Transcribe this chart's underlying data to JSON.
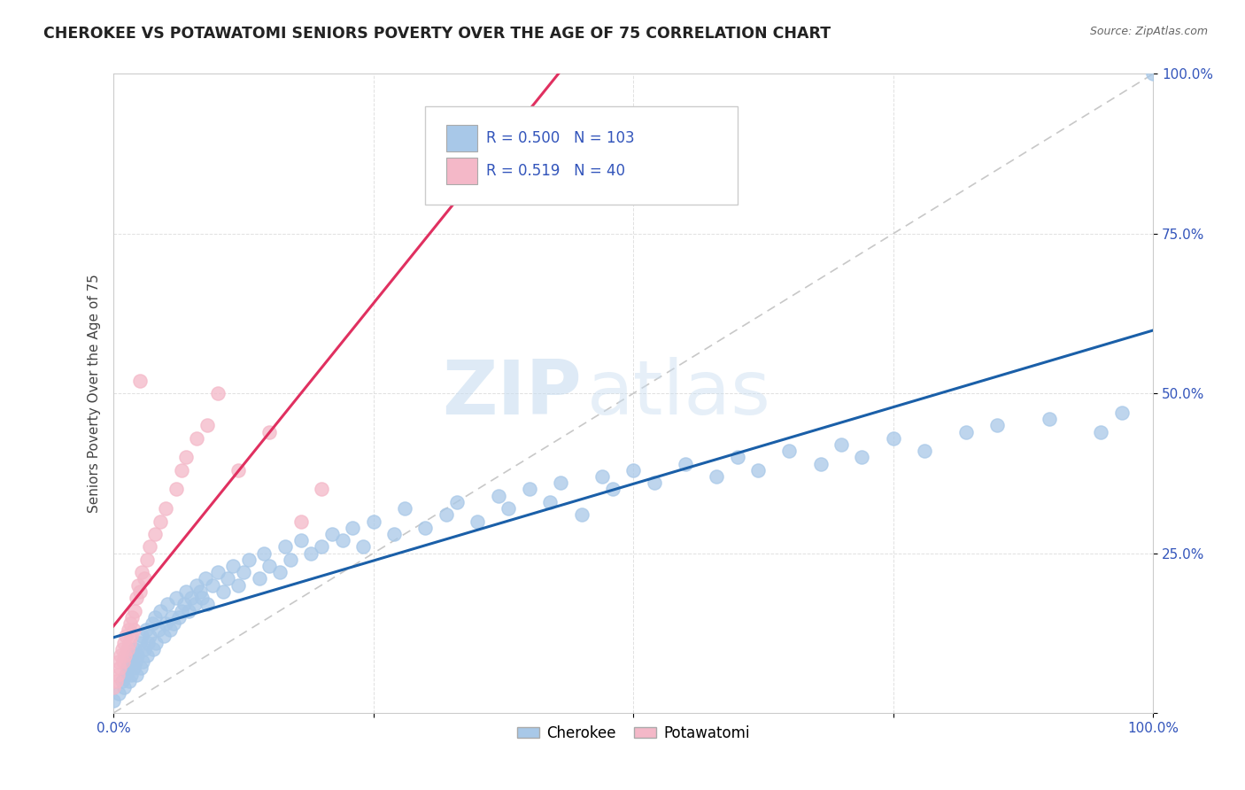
{
  "title": "CHEROKEE VS POTAWATOMI SENIORS POVERTY OVER THE AGE OF 75 CORRELATION CHART",
  "source": "Source: ZipAtlas.com",
  "ylabel": "Seniors Poverty Over the Age of 75",
  "cherokee_R": 0.5,
  "cherokee_N": 103,
  "potawatomi_R": 0.519,
  "potawatomi_N": 40,
  "cherokee_color": "#a8c8e8",
  "potawatomi_color": "#f4b8c8",
  "cherokee_line_color": "#1a5fa8",
  "potawatomi_line_color": "#e03060",
  "ref_line_color": "#c8c8c8",
  "background_color": "#ffffff",
  "legend_text_color": "#3355bb",
  "tick_color": "#3355bb",
  "xlim": [
    0.0,
    1.0
  ],
  "ylim": [
    0.0,
    1.0
  ],
  "cherokee_x": [
    0.0,
    0.005,
    0.008,
    0.01,
    0.012,
    0.013,
    0.015,
    0.016,
    0.017,
    0.018,
    0.019,
    0.02,
    0.021,
    0.022,
    0.023,
    0.025,
    0.026,
    0.027,
    0.028,
    0.03,
    0.031,
    0.032,
    0.033,
    0.035,
    0.037,
    0.038,
    0.04,
    0.041,
    0.043,
    0.045,
    0.048,
    0.05,
    0.052,
    0.054,
    0.056,
    0.058,
    0.06,
    0.063,
    0.065,
    0.068,
    0.07,
    0.072,
    0.075,
    0.078,
    0.08,
    0.083,
    0.085,
    0.088,
    0.09,
    0.095,
    0.1,
    0.105,
    0.11,
    0.115,
    0.12,
    0.125,
    0.13,
    0.14,
    0.145,
    0.15,
    0.16,
    0.165,
    0.17,
    0.18,
    0.19,
    0.2,
    0.21,
    0.22,
    0.23,
    0.24,
    0.25,
    0.27,
    0.28,
    0.3,
    0.32,
    0.33,
    0.35,
    0.37,
    0.38,
    0.4,
    0.42,
    0.43,
    0.45,
    0.47,
    0.48,
    0.5,
    0.52,
    0.55,
    0.58,
    0.6,
    0.62,
    0.65,
    0.68,
    0.7,
    0.72,
    0.75,
    0.78,
    0.82,
    0.85,
    0.9,
    0.95,
    1.0,
    0.97
  ],
  "cherokee_y": [
    0.02,
    0.03,
    0.05,
    0.04,
    0.06,
    0.07,
    0.05,
    0.08,
    0.06,
    0.09,
    0.07,
    0.1,
    0.08,
    0.06,
    0.09,
    0.11,
    0.07,
    0.12,
    0.08,
    0.1,
    0.13,
    0.09,
    0.11,
    0.12,
    0.14,
    0.1,
    0.15,
    0.11,
    0.13,
    0.16,
    0.12,
    0.14,
    0.17,
    0.13,
    0.15,
    0.14,
    0.18,
    0.15,
    0.16,
    0.17,
    0.19,
    0.16,
    0.18,
    0.17,
    0.2,
    0.19,
    0.18,
    0.21,
    0.17,
    0.2,
    0.22,
    0.19,
    0.21,
    0.23,
    0.2,
    0.22,
    0.24,
    0.21,
    0.25,
    0.23,
    0.22,
    0.26,
    0.24,
    0.27,
    0.25,
    0.26,
    0.28,
    0.27,
    0.29,
    0.26,
    0.3,
    0.28,
    0.32,
    0.29,
    0.31,
    0.33,
    0.3,
    0.34,
    0.32,
    0.35,
    0.33,
    0.36,
    0.31,
    0.37,
    0.35,
    0.38,
    0.36,
    0.39,
    0.37,
    0.4,
    0.38,
    0.41,
    0.39,
    0.42,
    0.4,
    0.43,
    0.41,
    0.44,
    0.45,
    0.46,
    0.44,
    1.0,
    0.47
  ],
  "potawatomi_x": [
    0.0,
    0.002,
    0.004,
    0.005,
    0.006,
    0.007,
    0.008,
    0.009,
    0.01,
    0.011,
    0.012,
    0.013,
    0.014,
    0.015,
    0.016,
    0.017,
    0.018,
    0.019,
    0.02,
    0.022,
    0.024,
    0.025,
    0.027,
    0.03,
    0.032,
    0.035,
    0.04,
    0.045,
    0.05,
    0.06,
    0.065,
    0.07,
    0.08,
    0.09,
    0.1,
    0.12,
    0.15,
    0.18,
    0.2,
    0.025
  ],
  "potawatomi_y": [
    0.04,
    0.05,
    0.06,
    0.08,
    0.07,
    0.09,
    0.1,
    0.08,
    0.11,
    0.09,
    0.12,
    0.1,
    0.13,
    0.11,
    0.14,
    0.12,
    0.15,
    0.13,
    0.16,
    0.18,
    0.2,
    0.19,
    0.22,
    0.21,
    0.24,
    0.26,
    0.28,
    0.3,
    0.32,
    0.35,
    0.38,
    0.4,
    0.43,
    0.45,
    0.5,
    0.38,
    0.44,
    0.3,
    0.35,
    0.52
  ]
}
